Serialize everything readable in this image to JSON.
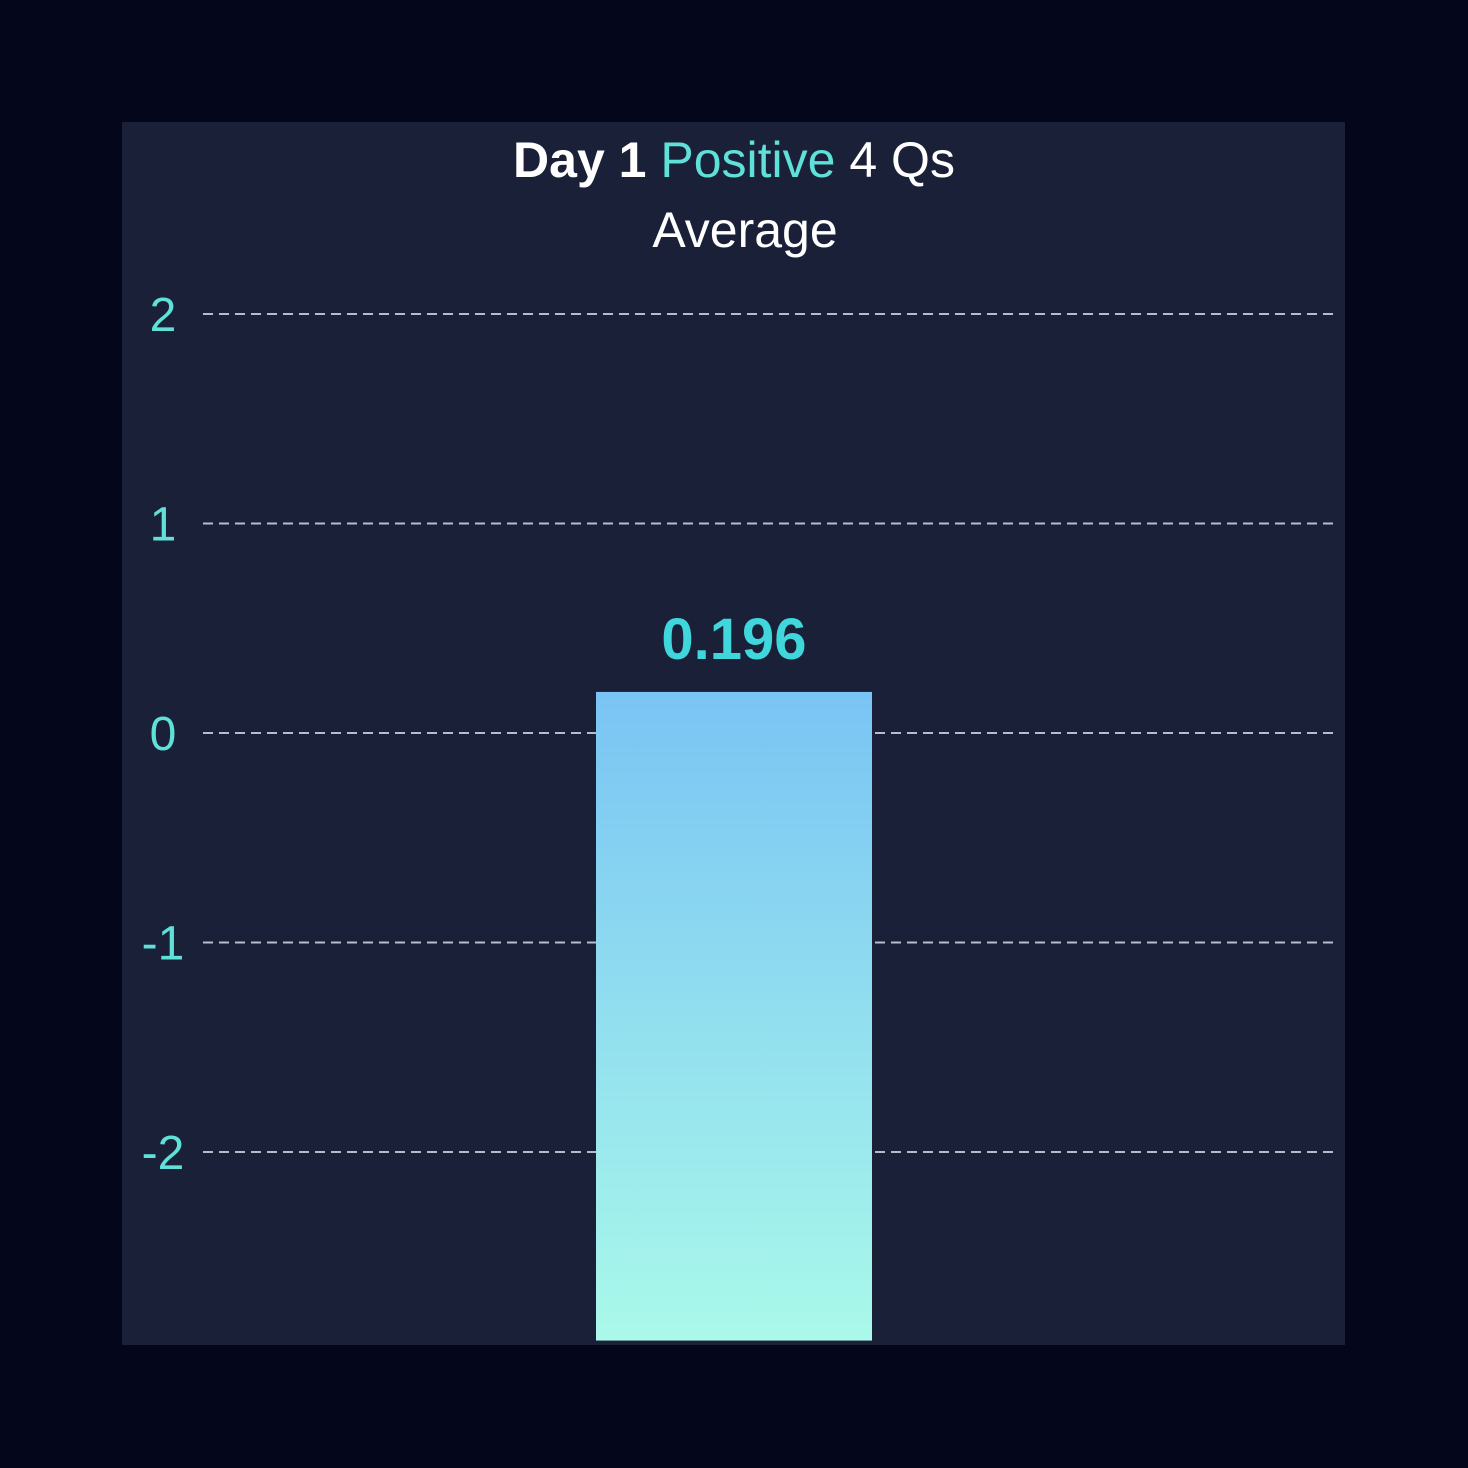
{
  "title": {
    "part1": "Day 1",
    "part2": "Positive",
    "part3": "4 Qs"
  },
  "subtitle": "Average",
  "colors": {
    "background": "#04061c",
    "panel": "#1b2039",
    "accent": "#5fe0d8",
    "grid": "#b8bcc8",
    "bar_top": "#79c4f4",
    "bar_bottom": "#aaf9ea",
    "label": "#3fd6dc"
  },
  "chart_data": {
    "type": "bar",
    "title": "Day 1 Positive 4 Qs Average",
    "categories": [
      ""
    ],
    "values": [
      0.196
    ],
    "data_labels": [
      "0.196"
    ],
    "bar_bottom_value": -2.9,
    "ylim": [
      -2.9,
      2
    ],
    "yticks": [
      2,
      1,
      0,
      -1,
      -2
    ],
    "ytick_labels": [
      "2",
      "1",
      "0",
      "-1",
      "-2"
    ],
    "grid": true,
    "grid_style": "dashed",
    "legend": "none",
    "xlabel": "",
    "ylabel": ""
  }
}
